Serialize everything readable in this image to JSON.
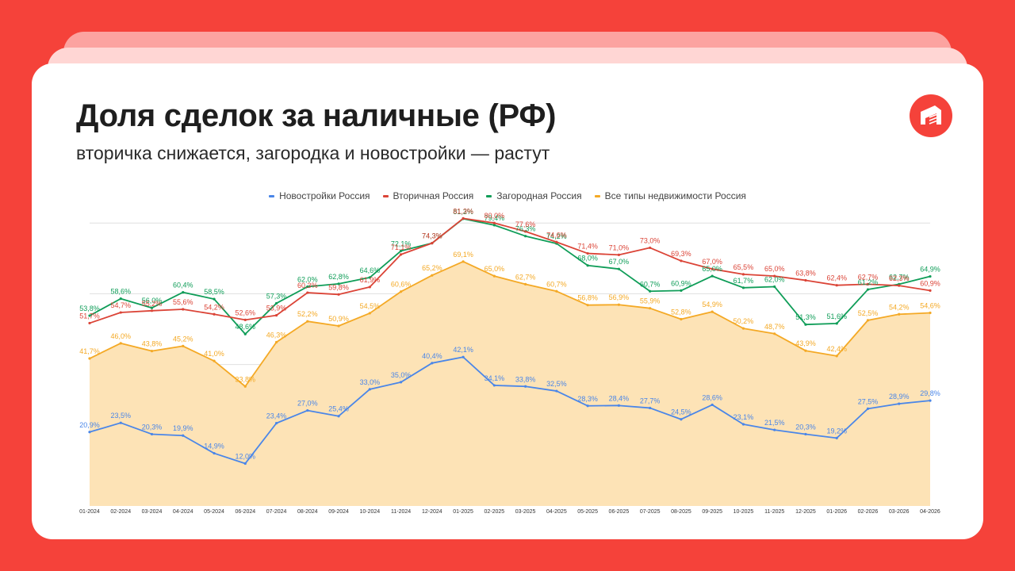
{
  "header": {
    "title": "Доля сделок за наличные (РФ)",
    "subtitle": "вторичка снижается, загородка и новостройки — растут",
    "logo_icon": "building-logo-icon"
  },
  "colors": {
    "background": "#f5423a",
    "card": "#ffffff",
    "area_fill": "#fde3b6"
  },
  "chart_data": {
    "type": "line",
    "title": "",
    "xlabel": "",
    "ylabel": "",
    "legend_position": "top",
    "grid": true,
    "x": [
      "01-2024",
      "02-2024",
      "03-2024",
      "04-2024",
      "05-2024",
      "06-2024",
      "07-2024",
      "08-2024",
      "09-2024",
      "10-2024",
      "11-2024",
      "12-2024",
      "01-2025",
      "02-2025",
      "03-2025",
      "04-2025",
      "05-2025",
      "06-2025",
      "07-2025",
      "08-2025",
      "09-2025",
      "10-2025",
      "11-2025",
      "12-2025",
      "01-2026",
      "02-2026",
      "03-2026",
      "04-2026"
    ],
    "series": [
      {
        "name": "Новостройки Россия",
        "color": "#4a86e8",
        "area": false,
        "values": [
          20.9,
          23.5,
          20.3,
          19.9,
          14.9,
          12.0,
          23.4,
          27.0,
          25.4,
          33.0,
          35.0,
          40.4,
          42.1,
          34.1,
          33.8,
          32.5,
          28.3,
          28.4,
          27.7,
          24.5,
          28.6,
          23.1,
          21.5,
          20.3,
          19.2,
          27.5,
          28.9,
          29.8
        ],
        "labels": [
          "20,9%",
          "23,5%",
          "20,3%",
          "19,9%",
          "14,9%",
          "12,0%",
          "23,4%",
          "27,0%",
          "25,4%",
          "33,0%",
          "35,0%",
          "40,4%",
          "42,1%",
          "34,1%",
          "33,8%",
          "32,5%",
          "28,3%",
          "28,4%",
          "27,7%",
          "24,5%",
          "28,6%",
          "23,1%",
          "21,5%",
          "20,3%",
          "19,2%",
          "27,5%",
          "28,9%",
          "29,8%"
        ]
      },
      {
        "name": "Вторичная Россия",
        "color": "#db4437",
        "area": false,
        "values": [
          51.7,
          54.7,
          55.2,
          55.6,
          54.2,
          52.6,
          53.9,
          60.3,
          59.8,
          61.9,
          71.1,
          74.3,
          81.3,
          80.0,
          77.6,
          74.6,
          71.4,
          71.0,
          73.0,
          69.3,
          67.0,
          65.5,
          65.0,
          63.8,
          62.4,
          62.7,
          62.3,
          60.9
        ],
        "labels": [
          "51,7%",
          "54,7%",
          "55,2%",
          "55,6%",
          "54,2%",
          "52,6%",
          "53,9%",
          "60,3%",
          "59,8%",
          "61,9%",
          "71,1%",
          "74,3%",
          "81,3%",
          "80,0%",
          "77,6%",
          "74,6%",
          "71,4%",
          "71,0%",
          "73,0%",
          "69,3%",
          "67,0%",
          "65,5%",
          "65,0%",
          "63,8%",
          "62,4%",
          "62,7%",
          "62,3%",
          "60,9%"
        ]
      },
      {
        "name": "Загородная Россия",
        "color": "#0f9d58",
        "area": false,
        "values": [
          53.8,
          58.6,
          56.0,
          60.4,
          58.5,
          48.6,
          57.3,
          62.0,
          62.8,
          64.6,
          72.1,
          74.3,
          81.2,
          79.4,
          76.3,
          74.2,
          68.0,
          67.0,
          60.7,
          60.9,
          65.0,
          61.7,
          62.0,
          51.3,
          51.6,
          61.2,
          62.7,
          64.9
        ],
        "labels": [
          "53,8%",
          "58,6%",
          "56,0%",
          "60,4%",
          "58,5%",
          "48,6%",
          "57,3%",
          "62,0%",
          "62,8%",
          "64,6%",
          "72,1%",
          "74,3%",
          "81,2%",
          "79,4%",
          "76,3%",
          "74,2%",
          "68,0%",
          "67,0%",
          "60,7%",
          "60,9%",
          "65,0%",
          "61,7%",
          "62,0%",
          "51,3%",
          "51,6%",
          "61,2%",
          "62,7%",
          "64,9%"
        ]
      },
      {
        "name": "Все типы недвижимости Россия",
        "color": "#f4a925",
        "area": true,
        "values": [
          41.7,
          46.0,
          43.8,
          45.2,
          41.0,
          33.8,
          46.3,
          52.2,
          50.9,
          54.5,
          60.6,
          65.2,
          69.1,
          65.0,
          62.7,
          60.7,
          56.8,
          56.9,
          55.9,
          52.8,
          54.9,
          50.2,
          48.7,
          43.9,
          42.4,
          52.5,
          54.2,
          54.6
        ],
        "labels": [
          "41,7%",
          "46,0%",
          "43,8%",
          "45,2%",
          "41,0%",
          "33,8%",
          "46,3%",
          "52,2%",
          "50,9%",
          "54,5%",
          "60,6%",
          "65,2%",
          "69,1%",
          "65,0%",
          "62,7%",
          "60,7%",
          "56,8%",
          "56,9%",
          "55,9%",
          "52,8%",
          "54,9%",
          "50,2%",
          "48,7%",
          "43,9%",
          "42,4%",
          "52,5%",
          "54,2%",
          "54,6%"
        ]
      }
    ]
  }
}
